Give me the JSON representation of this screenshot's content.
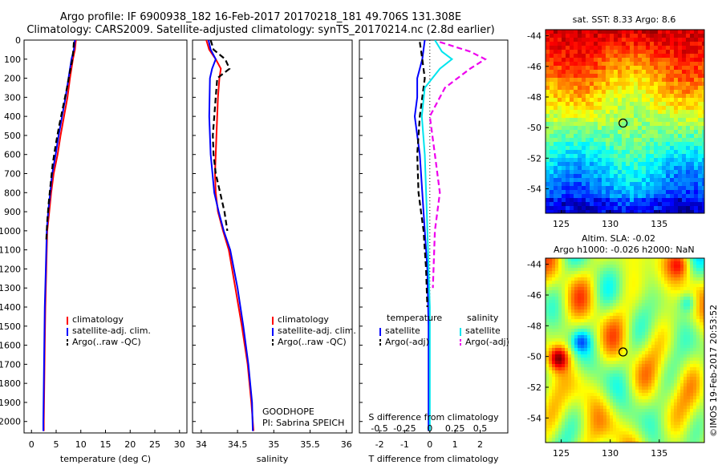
{
  "header": {
    "title_line1": "Argo profile: IF 6900938_182 16-Feb-2017 20170218_181 49.706S 131.308E",
    "title_line2": "Climatology: CARS2009. Satellite-adjusted climatology: synTS_20170214.nc (2.8d earlier)"
  },
  "colors": {
    "climatology": "#ff0000",
    "satellite": "#0000ff",
    "argo": "#000000",
    "satellite_salinity": "#00e5ee",
    "argo_salinity_adj": "#ee00ee"
  },
  "depth_axis": {
    "ticks": [
      "0",
      "100",
      "200",
      "300",
      "400",
      "500",
      "600",
      "700",
      "800",
      "900",
      "1000",
      "1100",
      "1200",
      "1300",
      "1400",
      "1500",
      "1600",
      "1700",
      "1800",
      "1900",
      "2000"
    ],
    "ylim": [
      0,
      2060
    ]
  },
  "chart_data": [
    {
      "type": "line",
      "id": "temperature",
      "xlabel": "temperature (deg C)",
      "xlim": [
        -1.5,
        31.5
      ],
      "xticks": [
        "0",
        "5",
        "10",
        "15",
        "20",
        "25",
        "30"
      ],
      "legend": [
        "climatology",
        "satellite-adj. clim.",
        "Argo(..raw -QC)"
      ],
      "series": [
        {
          "name": "climatology",
          "style": "solid",
          "color": "#ff0000",
          "x": [
            9.0,
            8.8,
            8.4,
            7.8,
            7.3,
            6.6,
            5.9,
            5.3,
            4.5,
            4.0,
            3.6,
            3.2,
            3.0,
            2.8,
            2.7,
            2.6,
            2.5,
            2.5
          ],
          "y": [
            0,
            50,
            100,
            200,
            300,
            400,
            500,
            600,
            700,
            800,
            900,
            1000,
            1200,
            1400,
            1600,
            1800,
            2000,
            2050
          ]
        },
        {
          "name": "satellite-adj. clim.",
          "style": "solid",
          "color": "#0000ff",
          "x": [
            8.8,
            8.6,
            8.1,
            7.5,
            6.9,
            6.2,
            5.5,
            4.9,
            4.2,
            3.8,
            3.4,
            3.1,
            2.9,
            2.7,
            2.6,
            2.5,
            2.4,
            2.4
          ],
          "y": [
            0,
            50,
            100,
            200,
            300,
            400,
            500,
            600,
            700,
            800,
            900,
            1000,
            1200,
            1400,
            1600,
            1800,
            2000,
            2050
          ]
        },
        {
          "name": "Argo(..raw -QC)",
          "style": "dashed",
          "color": "#000000",
          "x": [
            8.6,
            8.5,
            8.3,
            7.9,
            7.2,
            6.4,
            5.6,
            4.9,
            4.3,
            3.9,
            3.5,
            3.2,
            3.0
          ],
          "y": [
            10,
            50,
            100,
            150,
            250,
            350,
            450,
            550,
            650,
            750,
            850,
            950,
            1050
          ]
        }
      ]
    },
    {
      "type": "line",
      "id": "salinity",
      "xlabel": "salinity",
      "xlim": [
        33.88,
        36.08
      ],
      "xticks": [
        "34",
        "34.5",
        "35",
        "35.5",
        "36"
      ],
      "legend": [
        "climatology",
        "satellite-adj. clim.",
        "Argo(..raw -QC)"
      ],
      "annotation_lines": [
        "GOODHOPE",
        "PI: Sabrina SPEICH"
      ],
      "series": [
        {
          "name": "climatology",
          "style": "solid",
          "color": "#ff0000",
          "x": [
            34.07,
            34.11,
            34.2,
            34.27,
            34.25,
            34.23,
            34.21,
            34.19,
            34.2,
            34.23,
            34.3,
            34.38,
            34.47,
            34.56,
            34.64,
            34.69,
            34.72
          ],
          "y": [
            0,
            50,
            100,
            150,
            200,
            300,
            500,
            700,
            800,
            900,
            1000,
            1100,
            1300,
            1500,
            1700,
            1900,
            2050
          ]
        },
        {
          "name": "satellite-adj. clim.",
          "style": "solid",
          "color": "#0000ff",
          "x": [
            34.1,
            34.13,
            34.2,
            34.15,
            34.12,
            34.11,
            34.13,
            34.18,
            34.24,
            34.31,
            34.4,
            34.5,
            34.58,
            34.65,
            34.7,
            34.71
          ],
          "y": [
            0,
            50,
            100,
            150,
            200,
            400,
            600,
            800,
            900,
            1000,
            1100,
            1300,
            1500,
            1700,
            1900,
            2050
          ]
        },
        {
          "name": "Argo(..raw -QC)",
          "style": "dashed",
          "color": "#000000",
          "x": [
            34.13,
            34.17,
            34.33,
            34.39,
            34.22,
            34.2,
            34.18,
            34.16,
            34.17,
            34.2,
            34.26,
            34.32,
            34.36
          ],
          "y": [
            0,
            50,
            100,
            150,
            200,
            300,
            400,
            500,
            600,
            700,
            800,
            900,
            1000
          ]
        }
      ]
    },
    {
      "type": "line",
      "id": "difference",
      "xlabel": "T difference from climatology",
      "xlabel_top": "S difference from climatology",
      "xlim": [
        -2.8,
        3.1
      ],
      "xticks": [
        "-2",
        "-1",
        "0",
        "1",
        "2"
      ],
      "top_ticks": [
        "-0.5",
        "-0.25",
        "0",
        "0.25",
        "0.5"
      ],
      "legend_temperature": [
        "temperature",
        "satellite",
        "Argo(-adj)"
      ],
      "legend_salinity": [
        "salinity",
        "satellite",
        "Argo(-adj)"
      ],
      "series": [
        {
          "name": "satellite",
          "group": "temperature",
          "style": "solid",
          "color": "#0000ff",
          "x": [
            -0.2,
            -0.3,
            -0.5,
            -0.5,
            -0.6,
            -0.5,
            -0.4,
            -0.3,
            -0.2,
            -0.1,
            -0.05,
            -0.05
          ],
          "y": [
            0,
            100,
            200,
            300,
            400,
            500,
            600,
            800,
            1000,
            1200,
            1500,
            2050
          ]
        },
        {
          "name": "Argo(-adj)",
          "group": "temperature",
          "style": "dashed",
          "color": "#000000",
          "x": [
            -0.4,
            -0.3,
            -0.2,
            -0.3,
            -0.4,
            -0.5,
            -0.45,
            -0.35,
            -0.25,
            -0.15,
            -0.1
          ],
          "y": [
            10,
            100,
            200,
            300,
            400,
            600,
            800,
            900,
            1000,
            1200,
            1400
          ]
        },
        {
          "name": "satellite",
          "group": "salinity",
          "style": "solid",
          "color": "#00e5ee",
          "x": [
            0.05,
            0.12,
            0.22,
            0.1,
            -0.05,
            -0.08,
            -0.05,
            -0.03,
            0,
            0
          ],
          "y": [
            0,
            60,
            100,
            150,
            250,
            400,
            600,
            900,
            1400,
            2050
          ]
        },
        {
          "name": "Argo(-adj)",
          "group": "salinity",
          "style": "dashed",
          "color": "#ee00ee",
          "x": [
            0.1,
            0.4,
            0.55,
            0.4,
            0.15,
            0.0,
            0.05,
            0.1,
            0.05,
            0.03
          ],
          "y": [
            10,
            60,
            100,
            150,
            250,
            400,
            600,
            800,
            1000,
            1300
          ]
        }
      ]
    },
    {
      "type": "heatmap",
      "id": "sst_map",
      "title": "sat. SST: 8.33 Argo: 8.6",
      "xticks": [
        "125",
        "130",
        "135"
      ],
      "yticks": [
        "-44",
        "-46",
        "-48",
        "-50",
        "-52",
        "-54"
      ],
      "argo_position": {
        "lon": 131.308,
        "lat": -49.706
      }
    },
    {
      "type": "heatmap",
      "id": "sla_map",
      "title_line1": "Altim. SLA: -0.02",
      "title_line2": "Argo h1000: -0.026 h2000: NaN",
      "xticks": [
        "125",
        "130",
        "135"
      ],
      "yticks": [
        "-44",
        "-46",
        "-48",
        "-50",
        "-52",
        "-54"
      ],
      "argo_position": {
        "lon": 131.308,
        "lat": -49.706
      }
    }
  ],
  "footer": {
    "stamp": "©IMOS 19-Feb-2017 20:53:52"
  }
}
